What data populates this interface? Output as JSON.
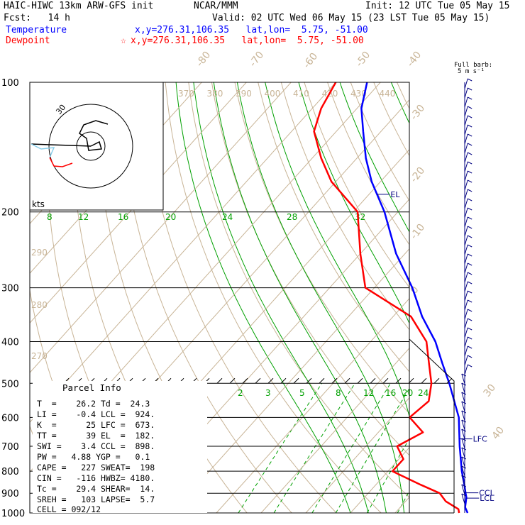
{
  "header": {
    "model": "HAIC-HIWC 13km ARW-GFS init",
    "org": "NCAR/MMM",
    "init": "Init: 12 UTC Tue 05 May 15",
    "fcst": "Fcst:   14 h",
    "valid": "Valid: 02 UTC Wed 06 May 15 (23 LST Tue 05 May 15)",
    "temp_label": "Temperature",
    "temp_loc": "x,y=276.31,106.35   lat,lon=  5.75, -51.00",
    "dew_label": "Dewpoint",
    "dew_loc": "x,y=276.31,106.35   lat,lon=  5.75, -51.00",
    "dew_marker": "☆"
  },
  "barb_key": {
    "title": "Full barb:",
    "value": "5 m s⁻¹"
  },
  "hodograph": {
    "units": "kts",
    "ring_label": "30"
  },
  "parcel": {
    "title": "Parcel Info",
    "rows": [
      "T  =    26.2 Td =  24.3",
      "LI =    -0.4 LCL =  924.",
      "K  =      25 LFC =  673.",
      "TT =      39 EL  =  182.",
      "SWI =    3.4 CCL =  898.",
      "PW =   4.88 YGP =   0.1",
      "CAPE =   227 SWEAT=  198",
      "CIN =   -116 HWBZ= 4180.",
      "Tc =    29.4 SHEAR=  14.",
      "SREH =   103 LAPSE=  5.7",
      "CELL = 092/12"
    ]
  },
  "colors": {
    "temperature": "#0000ff",
    "dewpoint": "#ff0000",
    "dry_adiabat": "#c8b496",
    "moist_adiabat": "#00a000",
    "mixing_ratio": "#00a000",
    "barb": "#000080"
  },
  "chart_data": {
    "type": "line",
    "title": "",
    "ylabel": "",
    "xlabel": "",
    "pressure_levels": [
      100,
      200,
      300,
      400,
      500,
      600,
      700,
      800,
      900,
      1000
    ],
    "isotherm_labels": [
      -80,
      -70,
      -60,
      -50,
      -40,
      -30,
      -20,
      -10,
      0,
      30,
      40
    ],
    "theta_labels": [
      370,
      380,
      390,
      400,
      410,
      420,
      430,
      440
    ],
    "theta_left_labels": [
      290,
      280,
      270
    ],
    "moist_labels": [
      8,
      12,
      16,
      20,
      24,
      28,
      32
    ],
    "mixing_ratio_labels": [
      2,
      3,
      5,
      8,
      12,
      16,
      20,
      24
    ],
    "level_markers": [
      "EL",
      "LFC",
      "CCL",
      "LCL"
    ],
    "series": [
      {
        "name": "Temperature",
        "p": [
          1000,
          970,
          940,
          920,
          900,
          860,
          800,
          700,
          600,
          500,
          450,
          400,
          350,
          300,
          250,
          200,
          170,
          150,
          130,
          115,
          100
        ],
        "T": [
          26.2,
          24.5,
          23.5,
          22.8,
          21.8,
          19.8,
          16.5,
          11.0,
          5.0,
          -4.0,
          -9.5,
          -15.5,
          -23.5,
          -31.5,
          -42.0,
          -53.0,
          -62.0,
          -68.0,
          -74.0,
          -79.0,
          -83.0
        ]
      },
      {
        "name": "Dewpoint",
        "p": [
          1000,
          980,
          940,
          900,
          860,
          800,
          750,
          700,
          650,
          600,
          550,
          500,
          450,
          400,
          350,
          300,
          250,
          200,
          170,
          150,
          130,
          115,
          100
        ],
        "T": [
          24.3,
          23.4,
          19.0,
          16.0,
          10.0,
          1.0,
          1.0,
          -3.0,
          0.0,
          -6.0,
          -5.0,
          -8.0,
          -12.5,
          -17.5,
          -26.0,
          -42.0,
          -50.0,
          -59.0,
          -71.0,
          -78.0,
          -85.0,
          -88.0,
          -90.0
        ]
      }
    ]
  }
}
